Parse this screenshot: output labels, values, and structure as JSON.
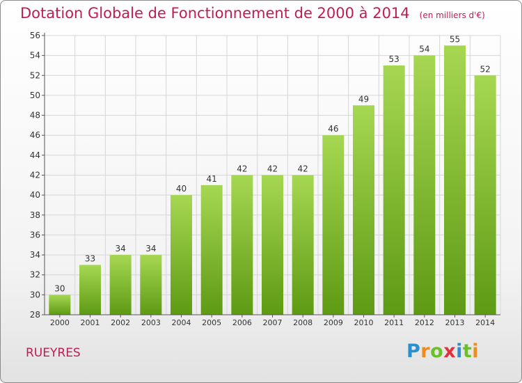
{
  "title": "Dotation Globale de Fonctionnement de 2000 à 2014",
  "unit_note": "(en milliers d'€)",
  "commune": "RUEYRES",
  "logo": {
    "text": "Proxiti",
    "letters": [
      "P",
      "r",
      "o",
      "x",
      "i",
      "t",
      "i"
    ],
    "colors": [
      "#2a8fd0",
      "#f08a1c",
      "#6abf2a",
      "#e0323a",
      "#2a8fd0",
      "#6abf2a",
      "#f08a1c"
    ]
  },
  "colors": {
    "title": "#c01c52",
    "bar_light": "#a6d752",
    "bar_dark": "#5e9a14",
    "grid": "#d6d6d6",
    "axis": "#555555"
  },
  "chart_data": {
    "type": "bar",
    "title": "Dotation Globale de Fonctionnement de 2000 à 2014",
    "subtitle": "(en milliers d'€)",
    "xlabel": "",
    "ylabel": "",
    "categories": [
      "2000",
      "2001",
      "2002",
      "2003",
      "2004",
      "2005",
      "2006",
      "2007",
      "2008",
      "2009",
      "2010",
      "2011",
      "2012",
      "2013",
      "2014"
    ],
    "values": [
      30,
      33,
      34,
      34,
      40,
      41,
      42,
      42,
      42,
      46,
      49,
      53,
      54,
      55,
      52
    ],
    "ylim": [
      28,
      56
    ],
    "yticks": [
      28,
      30,
      32,
      34,
      36,
      38,
      40,
      42,
      44,
      46,
      48,
      50,
      52,
      54,
      56
    ],
    "grid": true,
    "legend": "none"
  }
}
